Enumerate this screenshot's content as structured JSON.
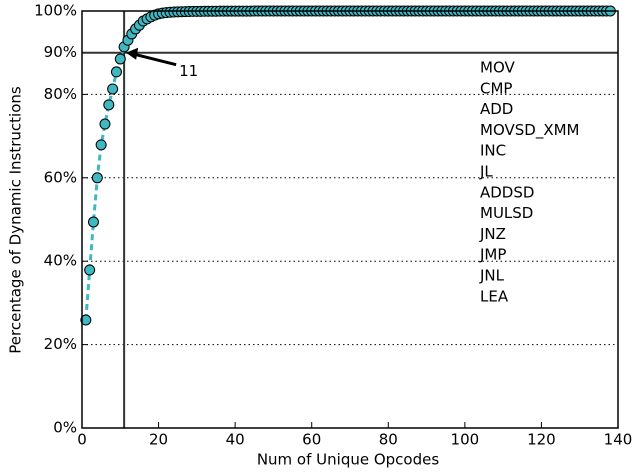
{
  "chart_data": {
    "type": "line",
    "x_label": "Num of Unique Opcodes",
    "y_label": "Percentage of Dynamic Instructions",
    "x": [
      1,
      2,
      3,
      4,
      5,
      6,
      7,
      8,
      9,
      10,
      11,
      12,
      13,
      14,
      15,
      16,
      17,
      18,
      19,
      20,
      21,
      22,
      23,
      24,
      25,
      26,
      27,
      28,
      29,
      30,
      31,
      32,
      33,
      34,
      35,
      36,
      37,
      38,
      39,
      40,
      41,
      42,
      43,
      44,
      45,
      46,
      47,
      48,
      49,
      50,
      51,
      52,
      53,
      54,
      55,
      56,
      57,
      58,
      59,
      60,
      61,
      62,
      63,
      64,
      65,
      66,
      67,
      68,
      69,
      70,
      71,
      72,
      73,
      74,
      75,
      76,
      77,
      78,
      79,
      80,
      81,
      82,
      83,
      84,
      85,
      86,
      87,
      88,
      89,
      90,
      91,
      92,
      93,
      94,
      95,
      96,
      97,
      98,
      99,
      100,
      101,
      102,
      103,
      104,
      105,
      106,
      107,
      108,
      109,
      110,
      111,
      112,
      113,
      114,
      115,
      116,
      117,
      118,
      119,
      120,
      121,
      122,
      123,
      124,
      125,
      126,
      127,
      128,
      129,
      130,
      131,
      132,
      133,
      134,
      135,
      136,
      137,
      138
    ],
    "series": [
      {
        "color": "#3fb8c2",
        "values": [
          25.9,
          37.9,
          49.4,
          60.0,
          67.9,
          72.9,
          77.5,
          81.3,
          85.4,
          88.5,
          91.4,
          93.0,
          94.5,
          95.7,
          96.6,
          97.6,
          98.1,
          98.6,
          99.0,
          99.3,
          99.5,
          99.6,
          99.7,
          99.75,
          99.8,
          99.82,
          99.85,
          99.87,
          99.9,
          99.9,
          99.92,
          99.93,
          99.94,
          99.95,
          99.95,
          99.96,
          99.96,
          99.97,
          99.97,
          99.97,
          99.98,
          99.98,
          99.98,
          99.98,
          99.99,
          99.99,
          99.99,
          99.99,
          99.99,
          99.99,
          100,
          100,
          100,
          100,
          100,
          100,
          100,
          100,
          100,
          100,
          100,
          100,
          100,
          100,
          100,
          100,
          100,
          100,
          100,
          100,
          100,
          100,
          100,
          100,
          100,
          100,
          100,
          100,
          100,
          100,
          100,
          100,
          100,
          100,
          100,
          100,
          100,
          100,
          100,
          100,
          100,
          100,
          100,
          100,
          100,
          100,
          100,
          100,
          100,
          100,
          100,
          100,
          100,
          100,
          100,
          100,
          100,
          100,
          100,
          100,
          100,
          100,
          100,
          100,
          100,
          100,
          100,
          100,
          100,
          100,
          100,
          100,
          100,
          100,
          100,
          100,
          100,
          100,
          100,
          100,
          100,
          100,
          100,
          100,
          100,
          100,
          100,
          100
        ]
      }
    ],
    "xlim": [
      0,
      140
    ],
    "ylim": [
      0,
      100
    ],
    "xticks": [
      0,
      20,
      40,
      60,
      80,
      100,
      120,
      140
    ],
    "yticks": [
      {
        "value": 0,
        "label": "0%"
      },
      {
        "value": 20,
        "label": "20%"
      },
      {
        "value": 40,
        "label": "40%"
      },
      {
        "value": 60,
        "label": "60%"
      },
      {
        "value": 80,
        "label": "80%"
      },
      {
        "value": 90,
        "label": "90%"
      },
      {
        "value": 100,
        "label": "100%"
      }
    ],
    "grid": true,
    "annotation": {
      "label": "11",
      "x": 11,
      "y": 90
    },
    "opcodes": [
      "MOV",
      "CMP",
      "ADD",
      "MOVSD_XMM",
      "INC",
      "JL",
      "ADDSD",
      "MULSD",
      "JNZ",
      "JMP",
      "JNL",
      "LEA"
    ]
  }
}
